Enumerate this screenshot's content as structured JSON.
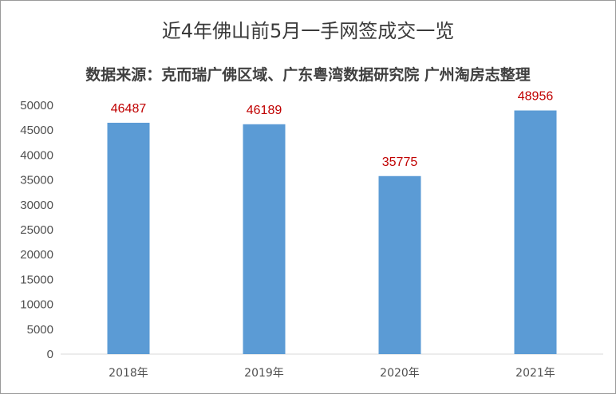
{
  "chart_data": {
    "type": "bar",
    "title": "近4年佛山前5月一手网签成交一览",
    "subtitle": "数据来源：克而瑞广佛区域、广东粤湾数据研究院  广州淘房志整理",
    "categories": [
      "2018年",
      "2019年",
      "2020年",
      "2021年"
    ],
    "values": [
      46487,
      46189,
      35775,
      48956
    ],
    "data_labels": [
      "46487",
      "46189",
      "35775",
      "48956"
    ],
    "ylim": [
      0,
      50000
    ],
    "yticks": [
      "0",
      "5000",
      "10000",
      "15000",
      "20000",
      "25000",
      "30000",
      "35000",
      "40000",
      "45000",
      "50000"
    ],
    "grid": false,
    "legend": "none",
    "colors": {
      "bar": "#5b9bd5",
      "data_label": "#c00000",
      "axis": "#d9d9d9"
    }
  }
}
